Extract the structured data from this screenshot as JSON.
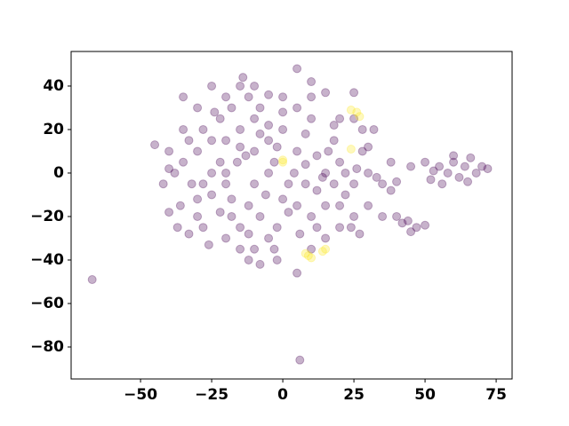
{
  "chart_data": {
    "type": "scatter",
    "series": [
      {
        "color": "#440154",
        "x": [
          -40,
          -38,
          -42,
          -35,
          -36,
          -30,
          -28,
          -25,
          -25,
          -22,
          -20,
          -18,
          -15,
          -15,
          -12,
          -10,
          -10,
          -10,
          -8,
          -5,
          -3,
          -10,
          -15,
          -20,
          -5,
          0,
          0,
          5,
          5,
          8,
          10,
          12,
          15,
          18,
          20,
          22,
          25,
          28,
          30,
          32,
          30,
          35,
          -30,
          -35,
          -25,
          -14,
          -5,
          5,
          10,
          15,
          20,
          25,
          -32,
          -20,
          -5,
          5,
          15,
          -2,
          -12,
          -8,
          5,
          20,
          25,
          -45,
          -40,
          -37,
          -33,
          -22,
          -18,
          -13,
          -3,
          2,
          12,
          18,
          38,
          35,
          38,
          -28,
          -18,
          -8,
          10,
          25,
          33,
          40,
          24,
          27,
          15,
          10,
          -35,
          -30,
          -28,
          -22,
          -20,
          -16,
          -12,
          -6,
          -2,
          4,
          8,
          12,
          16,
          20,
          26,
          30,
          -26,
          -15,
          -2,
          6,
          -40,
          -33,
          -24,
          -10,
          0,
          10,
          18,
          28,
          -20,
          -8,
          2,
          14,
          22,
          -30,
          -12,
          0,
          -25,
          -15,
          -5,
          8,
          50,
          52,
          55,
          58,
          60,
          62,
          64,
          66,
          68,
          70,
          72,
          56,
          60,
          65,
          53,
          40,
          42,
          45,
          47,
          50,
          44,
          -67,
          6,
          45
        ],
        "values": [
          10,
          0,
          -5,
          5,
          -15,
          -20,
          -25,
          -10,
          15,
          25,
          35,
          30,
          20,
          40,
          35,
          25,
          10,
          -5,
          -20,
          -30,
          -35,
          -35,
          -25,
          -30,
          15,
          20,
          35,
          30,
          10,
          -5,
          -20,
          -25,
          0,
          15,
          5,
          -10,
          -5,
          10,
          0,
          20,
          -15,
          -5,
          30,
          35,
          40,
          44,
          36,
          48,
          42,
          37,
          25,
          37,
          -5,
          0,
          0,
          -15,
          -15,
          -25,
          -40,
          -42,
          -46,
          -25,
          -20,
          13,
          -18,
          -25,
          -28,
          5,
          -12,
          8,
          5,
          -5,
          8,
          -5,
          -8,
          -20,
          5,
          20,
          -20,
          30,
          25,
          25,
          -2,
          -4,
          -25,
          -28,
          -30,
          -35,
          20,
          10,
          -5,
          -18,
          15,
          5,
          -15,
          -10,
          12,
          0,
          18,
          -8,
          10,
          -15,
          2,
          12,
          -33,
          -35,
          -40,
          -28,
          2,
          15,
          28,
          40,
          28,
          35,
          22,
          20,
          -5,
          18,
          -18,
          -2,
          0,
          -12,
          -28,
          -12,
          0,
          12,
          22,
          4,
          5,
          -3,
          3,
          0,
          5,
          -2,
          3,
          7,
          0,
          3,
          2,
          -5,
          8,
          -4,
          1,
          -20,
          -23,
          -27,
          -25,
          -24,
          -22,
          -49,
          -86,
          3
        ]
      },
      {
        "color": "#fde725",
        "x": [
          0,
          0,
          24,
          26,
          27,
          8,
          10,
          9,
          15,
          14,
          24
        ],
        "values": [
          6,
          5,
          29,
          28,
          26,
          -37,
          -39,
          -38,
          -35,
          -36,
          11
        ]
      }
    ],
    "xlim": [
      -74.4,
      80.6
    ],
    "ylim": [
      -94.7,
      55.9
    ],
    "xticks": [
      {
        "value": -50,
        "label": "−50"
      },
      {
        "value": -25,
        "label": "−25"
      },
      0,
      25,
      50,
      75
    ],
    "yticks": [
      {
        "value": -80,
        "label": "−80"
      },
      {
        "value": -60,
        "label": "−60"
      },
      {
        "value": -40,
        "label": "−40"
      },
      {
        "value": -20,
        "label": "−20"
      },
      0,
      20,
      40
    ],
    "opacity": 0.3,
    "grid": false
  }
}
